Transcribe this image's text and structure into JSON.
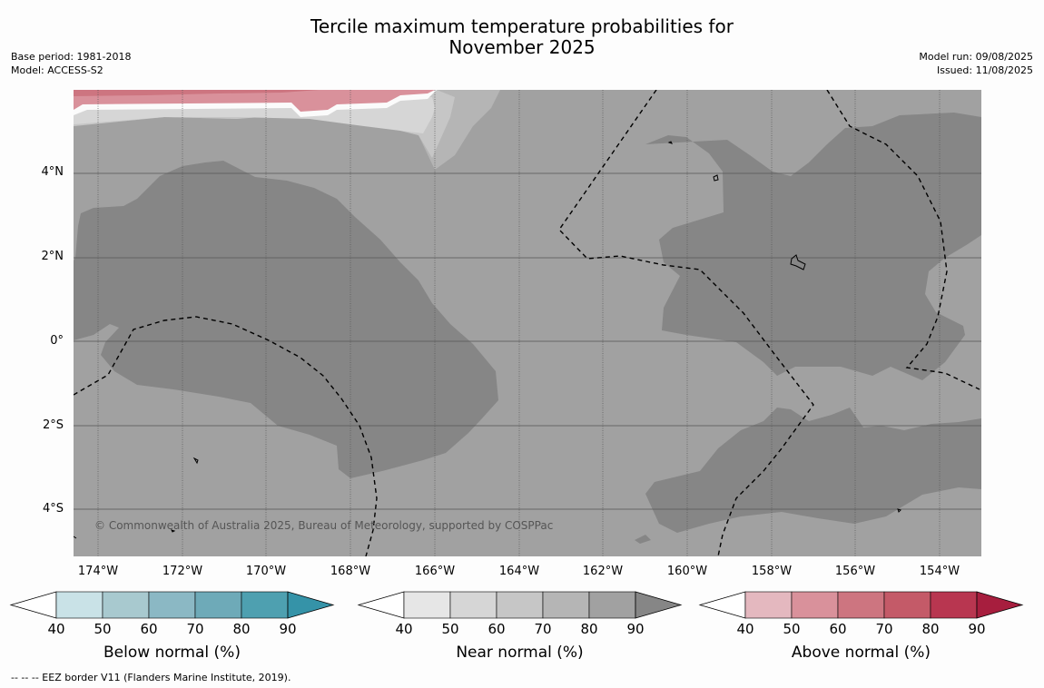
{
  "title_line1": "Tercile maximum temperature probabilities for",
  "title_line2": "November 2025",
  "meta_left": {
    "base_period": "Base period: 1981-2018",
    "model": "Model: ACCESS-S2"
  },
  "meta_right": {
    "model_run": "Model run: 09/08/2025",
    "issued": "Issued: 11/08/2025"
  },
  "y_labels": [
    "4°N",
    "2°N",
    "0°",
    "2°S",
    "4°S"
  ],
  "x_labels": [
    "174°W",
    "172°W",
    "170°W",
    "168°W",
    "166°W",
    "164°W",
    "162°W",
    "160°W",
    "158°W",
    "156°W",
    "154°W"
  ],
  "copyright": "© Commonwealth of Australia 2025, Bureau of Meteorology, supported by COSPPac",
  "footnote": "--  --  -- EEZ border V11 (Flanders Marine Institute, 2019).",
  "colorbars": [
    {
      "label": "Below normal (%)",
      "ticks": [
        "40",
        "50",
        "60",
        "70",
        "80",
        "90"
      ],
      "colors": [
        "#c9e2e7",
        "#a8c9cf",
        "#8bb8c4",
        "#6eaab8",
        "#4ea0b0",
        "#3593a8"
      ]
    },
    {
      "label": "Near normal (%)",
      "ticks": [
        "40",
        "50",
        "60",
        "70",
        "80",
        "90"
      ],
      "colors": [
        "#e6e6e6",
        "#d6d6d6",
        "#c6c6c6",
        "#b5b5b5",
        "#a1a1a1",
        "#868686"
      ]
    },
    {
      "label": "Above normal (%)",
      "ticks": [
        "40",
        "50",
        "60",
        "70",
        "80",
        "90"
      ],
      "colors": [
        "#e4b8bf",
        "#d9919b",
        "#cd7580",
        "#c45a68",
        "#b83650",
        "#a71e3e"
      ]
    }
  ],
  "map_colors": {
    "near_50": "#d6d6d6",
    "near_60": "#c6c6c6",
    "near_70": "#b5b5b5",
    "near_80": "#a1a1a1",
    "near_90": "#868686",
    "above_50": "#d9919b",
    "above_60": "#cd7580"
  }
}
